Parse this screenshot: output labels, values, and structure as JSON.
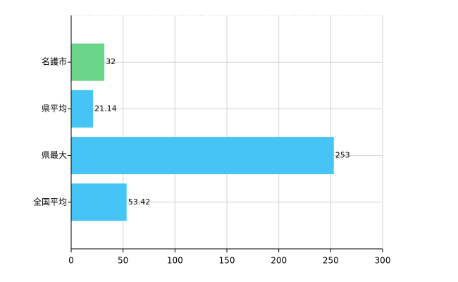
{
  "chart_data": {
    "type": "barh",
    "categories": [
      "名護市",
      "県平均",
      "県最大",
      "全国平均"
    ],
    "values": [
      32,
      21.14,
      253,
      53.42
    ],
    "colors": [
      "#6bd58a",
      "#45c4f5",
      "#45c4f5",
      "#45c4f5"
    ],
    "xlim": [
      0,
      300
    ],
    "xticks": [
      0,
      50,
      100,
      150,
      200,
      250,
      300
    ],
    "grid": true
  }
}
